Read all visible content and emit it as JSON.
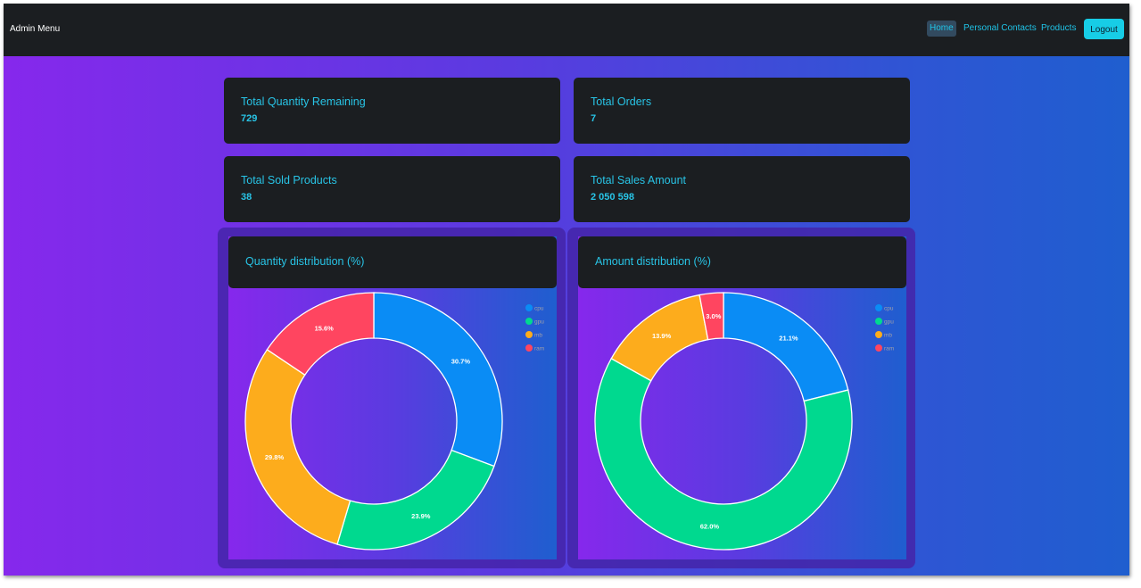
{
  "navbar": {
    "brand": "Admin Menu",
    "links": [
      {
        "label": "Home",
        "active": true
      },
      {
        "label": "Personal Contacts",
        "active": false
      },
      {
        "label": "Products",
        "active": false
      }
    ],
    "logout_label": "Logout"
  },
  "stats": [
    {
      "title": "Total Quantity Remaining",
      "value": "729"
    },
    {
      "title": "Total Orders",
      "value": "7"
    },
    {
      "title": "Total Sold Products",
      "value": "38"
    },
    {
      "title": "Total Sales Amount",
      "value": "2 050 598"
    }
  ],
  "colors": {
    "cpu": "#0a8cf5",
    "gpu": "#00d98f",
    "mb": "#fdac1c",
    "ram": "#ff4560"
  },
  "chart_data": [
    {
      "type": "pie",
      "title": "Quantity distribution (%)",
      "categories": [
        "cpu",
        "gpu",
        "mb",
        "ram"
      ],
      "values": [
        30.7,
        23.9,
        29.8,
        15.6
      ],
      "labels": [
        "30.7%",
        "23.9%",
        "29.8%",
        "15.6%"
      ],
      "donut": true,
      "legend": "top-right"
    },
    {
      "type": "pie",
      "title": "Amount distribution (%)",
      "categories": [
        "cpu",
        "gpu",
        "mb",
        "ram"
      ],
      "values": [
        21.1,
        62.0,
        13.9,
        3.0
      ],
      "labels": [
        "21.1%",
        "62.0%",
        "13.9%",
        "3.0%"
      ],
      "donut": true,
      "legend": "top-right"
    }
  ]
}
